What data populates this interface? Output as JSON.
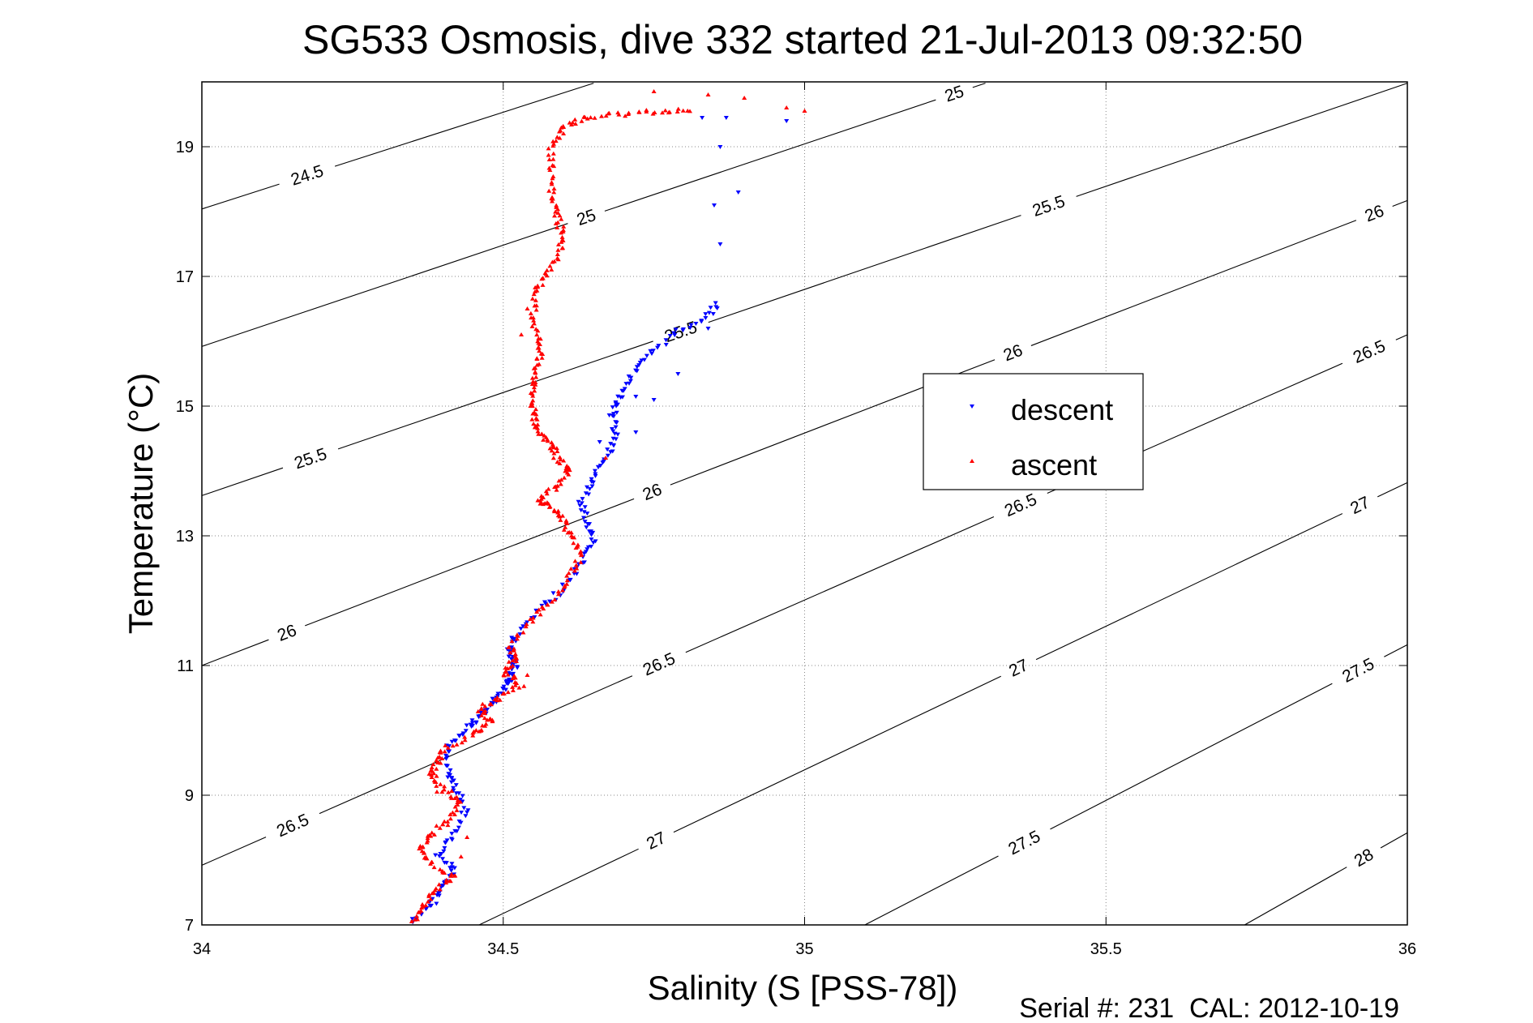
{
  "chart_data": {
    "type": "scatter",
    "title": "SG533 Osmosis, dive 332 started 21-Jul-2013 09:32:50",
    "xlabel": "Salinity (S [PSS-78])",
    "ylabel": "Temperature (°C)",
    "xlim": [
      34,
      36
    ],
    "ylim": [
      7,
      20
    ],
    "x_ticks": [
      "34",
      "34.5",
      "35",
      "35.5",
      "36"
    ],
    "y_ticks": [
      "7",
      "9",
      "11",
      "13",
      "15",
      "17",
      "19"
    ],
    "grid": true,
    "legend_position": "center-right",
    "footer": "Serial #: 231  CAL: 2012-10-19",
    "contours": [
      {
        "label": "24.5",
        "points": [
          [
            34.0,
            18.04
          ],
          [
            34.65,
            19.98
          ]
        ],
        "label_at": [
          [
            34.175,
            18.55
          ]
        ]
      },
      {
        "label": "25",
        "points": [
          [
            34.0,
            15.92
          ],
          [
            35.3,
            19.98
          ]
        ],
        "label_at": [
          [
            34.64,
            17.85
          ],
          [
            35.25,
            19.77
          ]
        ]
      },
      {
        "label": "25.5",
        "points": [
          [
            34.0,
            13.62
          ],
          [
            36.0,
            19.98
          ]
        ],
        "label_at": [
          [
            34.18,
            14.2
          ],
          [
            34.79,
            16.27
          ],
          [
            35.4,
            18.22
          ]
        ]
      },
      {
        "label": "26",
        "points": [
          [
            34.0,
            11.0
          ],
          [
            36.0,
            18.17
          ]
        ],
        "label_at": [
          [
            34.14,
            11.53
          ],
          [
            34.74,
            13.85
          ],
          [
            35.34,
            15.96
          ],
          [
            35.94,
            18.1
          ]
        ]
      },
      {
        "label": "26.5",
        "points": [
          [
            34.0,
            7.92
          ],
          [
            36.0,
            16.1
          ]
        ],
        "label_at": [
          [
            34.15,
            8.55
          ],
          [
            34.75,
            11.2
          ],
          [
            35.35,
            13.65
          ],
          [
            35.94,
            15.77
          ]
        ]
      },
      {
        "label": "27",
        "points": [
          [
            34.46,
            7.0
          ],
          [
            36.0,
            13.82
          ]
        ],
        "label_at": [
          [
            34.75,
            8.37
          ],
          [
            35.35,
            11.06
          ],
          [
            35.92,
            13.5
          ]
        ]
      },
      {
        "label": "27.5",
        "points": [
          [
            35.1,
            7.0
          ],
          [
            36.0,
            11.32
          ]
        ],
        "label_at": [
          [
            35.36,
            8.35
          ],
          [
            35.92,
            10.9
          ]
        ]
      },
      {
        "label": "28",
        "points": [
          [
            35.73,
            7.0
          ],
          [
            36.0,
            8.42
          ]
        ],
        "label_at": [
          [
            35.93,
            8.0
          ]
        ]
      }
    ],
    "series": [
      {
        "name": "descent",
        "color": "#0000ff",
        "marker": "triangle-down",
        "profile": [
          [
            34.35,
            7.05
          ],
          [
            34.38,
            7.3
          ],
          [
            34.4,
            7.6
          ],
          [
            34.42,
            7.85
          ],
          [
            34.39,
            8.1
          ],
          [
            34.42,
            8.4
          ],
          [
            34.44,
            8.8
          ],
          [
            34.42,
            9.1
          ],
          [
            34.41,
            9.4
          ],
          [
            34.41,
            9.8
          ],
          [
            34.44,
            10.05
          ],
          [
            34.46,
            10.2
          ],
          [
            34.48,
            10.4
          ],
          [
            34.5,
            10.6
          ],
          [
            34.51,
            10.8
          ],
          [
            34.52,
            11.0
          ],
          [
            34.51,
            11.2
          ],
          [
            34.52,
            11.45
          ],
          [
            34.56,
            11.85
          ],
          [
            34.6,
            12.2
          ],
          [
            34.63,
            12.55
          ],
          [
            34.65,
            12.9
          ],
          [
            34.64,
            13.2
          ],
          [
            34.63,
            13.55
          ],
          [
            34.65,
            13.9
          ],
          [
            34.67,
            14.2
          ],
          [
            34.69,
            14.5
          ],
          [
            34.68,
            14.85
          ],
          [
            34.69,
            15.1
          ],
          [
            34.71,
            15.45
          ],
          [
            34.74,
            15.75
          ],
          [
            34.78,
            16.1
          ],
          [
            34.83,
            16.35
          ],
          [
            34.86,
            16.6
          ]
        ],
        "scatter": [
          [
            34.86,
            17.5
          ],
          [
            34.85,
            18.1
          ],
          [
            34.89,
            18.3
          ],
          [
            34.86,
            19.0
          ],
          [
            34.83,
            19.45
          ],
          [
            34.87,
            19.45
          ],
          [
            34.97,
            19.4
          ],
          [
            34.84,
            16.2
          ],
          [
            34.72,
            15.15
          ],
          [
            34.75,
            15.1
          ],
          [
            34.79,
            15.5
          ],
          [
            34.72,
            14.6
          ],
          [
            34.66,
            14.45
          ]
        ]
      },
      {
        "name": "ascent",
        "color": "#ff0000",
        "marker": "triangle-up",
        "profile": [
          [
            34.35,
            7.05
          ],
          [
            34.37,
            7.3
          ],
          [
            34.39,
            7.55
          ],
          [
            34.42,
            7.75
          ],
          [
            34.38,
            7.95
          ],
          [
            34.36,
            8.15
          ],
          [
            34.38,
            8.4
          ],
          [
            34.41,
            8.6
          ],
          [
            34.43,
            8.9
          ],
          [
            34.4,
            9.1
          ],
          [
            34.38,
            9.3
          ],
          [
            34.39,
            9.5
          ],
          [
            34.4,
            9.7
          ],
          [
            34.45,
            9.95
          ],
          [
            34.48,
            10.1
          ],
          [
            34.46,
            10.3
          ],
          [
            34.49,
            10.5
          ],
          [
            34.53,
            10.7
          ],
          [
            34.5,
            10.9
          ],
          [
            34.52,
            11.1
          ],
          [
            34.51,
            11.3
          ],
          [
            34.55,
            11.7
          ],
          [
            34.58,
            12.0
          ],
          [
            34.61,
            12.35
          ],
          [
            34.63,
            12.7
          ],
          [
            34.61,
            13.0
          ],
          [
            34.6,
            13.25
          ],
          [
            34.58,
            13.45
          ],
          [
            34.56,
            13.55
          ],
          [
            34.59,
            13.75
          ],
          [
            34.61,
            14.0
          ],
          [
            34.59,
            14.2
          ],
          [
            34.58,
            14.4
          ],
          [
            34.56,
            14.6
          ],
          [
            34.55,
            14.8
          ],
          [
            34.55,
            15.1
          ],
          [
            34.55,
            15.4
          ],
          [
            34.56,
            15.7
          ],
          [
            34.56,
            15.95
          ],
          [
            34.55,
            16.3
          ],
          [
            34.55,
            16.7
          ],
          [
            34.57,
            17.0
          ],
          [
            34.59,
            17.3
          ],
          [
            34.6,
            17.6
          ],
          [
            34.59,
            17.9
          ],
          [
            34.58,
            18.2
          ],
          [
            34.58,
            18.6
          ],
          [
            34.58,
            19.0
          ],
          [
            34.6,
            19.3
          ],
          [
            34.64,
            19.45
          ],
          [
            34.7,
            19.5
          ],
          [
            34.76,
            19.55
          ],
          [
            34.82,
            19.58
          ]
        ],
        "scatter": [
          [
            34.75,
            19.85
          ],
          [
            34.84,
            19.8
          ],
          [
            34.9,
            19.75
          ],
          [
            34.97,
            19.6
          ],
          [
            35.0,
            19.55
          ],
          [
            34.6,
            19.3
          ],
          [
            34.62,
            19.35
          ],
          [
            34.53,
            16.1
          ],
          [
            34.54,
            16.5
          ],
          [
            34.67,
            14.2
          ],
          [
            34.48,
            10.4
          ],
          [
            34.47,
            10.3
          ],
          [
            34.52,
            11.1
          ],
          [
            34.54,
            10.85
          ],
          [
            34.43,
            8.05
          ],
          [
            34.39,
            9.05
          ],
          [
            34.44,
            8.35
          ]
        ]
      }
    ]
  }
}
